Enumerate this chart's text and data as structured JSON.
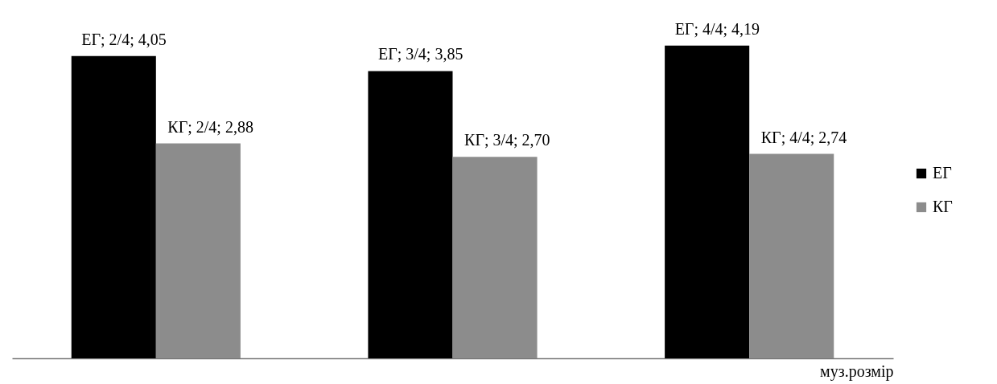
{
  "chart_data": {
    "type": "bar",
    "categories": [
      null,
      null,
      null
    ],
    "xlabel": "муз.розмір",
    "legend": "right",
    "grid": false,
    "series": [
      {
        "name": "ЕГ",
        "color": "#000000",
        "values": [
          4.05,
          3.85,
          4.19
        ],
        "value_labels": [
          "ЕГ; 2/4; 4,05",
          "ЕГ; 3/4; 3,85",
          "ЕГ; 4/4; 4,19"
        ]
      },
      {
        "name": "КГ",
        "color": "#8c8c8c",
        "values": [
          2.88,
          2.7,
          2.74
        ],
        "value_labels": [
          "КГ; 2/4; 2,88",
          "КГ; 3/4; 2,70",
          "КГ; 4/4; 2,74"
        ]
      }
    ]
  }
}
